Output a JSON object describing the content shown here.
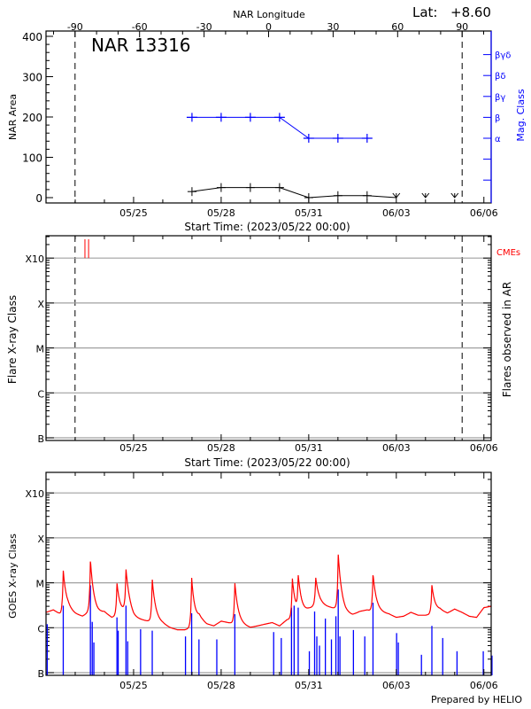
{
  "colors": {
    "axis": "#000000",
    "mag_class": "#0000ff",
    "cme": "#ff0000",
    "goes_long": "#ff0000",
    "goes_short": "#0000ff",
    "grid": "#a0a0a0"
  },
  "header": {
    "region": "NAR 13316",
    "lat_label": "Lat:",
    "lat_value": "+8.60"
  },
  "footer": {
    "credit": "Prepared by HELIO"
  },
  "chart_data": [
    {
      "type": "line",
      "panel": "nar-area",
      "top_axis": {
        "label": "NAR Longitude",
        "ticks": [
          "-90",
          "-60",
          "-30",
          "0",
          "30",
          "60",
          "90"
        ],
        "range": [
          -103.5,
          103.5
        ]
      },
      "xlabel": "Start Time: (2023/05/22 00:00)",
      "x_ticks": [
        "05/25",
        "05/28",
        "05/31",
        "06/03",
        "06/06"
      ],
      "xlim": [
        "05/22 00:00",
        "06/06 06:00"
      ],
      "ylabel": "NAR Area",
      "y_ticks": [
        "0",
        "100",
        "200",
        "300",
        "400"
      ],
      "ylim": [
        0,
        413
      ],
      "y2label": "Mag. Class",
      "y2_ticks": [
        "α",
        "β",
        "βγ",
        "βδ",
        "βγδ"
      ],
      "limb_longitudes": [
        -90,
        90
      ],
      "series": [
        {
          "key": "area",
          "x": [
            "05/27",
            "05/28",
            "05/29",
            "05/30",
            "05/31",
            "06/01",
            "06/02",
            "06/03",
            "06/04",
            "06/05"
          ],
          "values": [
            15,
            25,
            25,
            25,
            0,
            5,
            5,
            0,
            0,
            0
          ]
        },
        {
          "key": "mag_class",
          "x": [
            "05/27",
            "05/28",
            "05/29",
            "05/30",
            "05/31",
            "06/01",
            "06/02"
          ],
          "values": [
            "β",
            "β",
            "β",
            "β",
            "α",
            "α",
            "α"
          ]
        }
      ]
    },
    {
      "type": "scatter",
      "panel": "flares",
      "xlabel": "Start Time: (2023/05/22 00:00)",
      "x_ticks": [
        "05/25",
        "05/28",
        "05/31",
        "06/03",
        "06/06"
      ],
      "ylabel": "Flare X-ray Class",
      "y2label": "Flares observed in AR",
      "y_ticks": [
        "B",
        "C",
        "M",
        "X",
        "X10"
      ],
      "grid": true,
      "cme_label": "CMEs",
      "cmes": [
        "05/23 08:00",
        "05/23 11:00"
      ],
      "flares": []
    },
    {
      "type": "line",
      "panel": "goes",
      "ylabel": "GOES X-ray Class",
      "x_ticks": [
        "05/25",
        "05/28",
        "05/31",
        "06/03",
        "06/06"
      ],
      "y_ticks": [
        "B",
        "C",
        "M",
        "X",
        "X10"
      ],
      "grid": true,
      "long_channel_baseline": [
        [
          "05/22 00:00",
          2.2e-06
        ],
        [
          "05/22 06:00",
          2.5e-06
        ],
        [
          "05/22 12:00",
          2e-06
        ],
        [
          "05/22 18:00",
          2.4e-06
        ],
        [
          "05/23 00:00",
          2e-06
        ],
        [
          "05/23 06:00",
          1.8e-06
        ],
        [
          "05/23 12:00",
          2.3e-06
        ],
        [
          "05/23 18:00",
          2e-06
        ],
        [
          "05/24 00:00",
          2.2e-06
        ],
        [
          "05/24 06:00",
          1.7e-06
        ],
        [
          "05/24 12:00",
          1.8e-06
        ],
        [
          "05/24 18:00",
          2.4e-06
        ],
        [
          "05/25 00:00",
          1.6e-06
        ],
        [
          "05/25 06:00",
          1.5e-06
        ],
        [
          "05/25 12:00",
          1.4e-06
        ],
        [
          "05/25 18:00",
          1.3e-06
        ],
        [
          "05/26 00:00",
          1.2e-06
        ],
        [
          "05/26 06:00",
          1e-06
        ],
        [
          "05/26 12:00",
          9e-07
        ],
        [
          "05/26 18:00",
          9e-07
        ],
        [
          "05/27 00:00",
          1e-06
        ],
        [
          "05/27 06:00",
          1.6e-06
        ],
        [
          "05/27 12:00",
          1.2e-06
        ],
        [
          "05/27 18:00",
          1.1e-06
        ],
        [
          "05/28 00:00",
          1.4e-06
        ],
        [
          "05/28 06:00",
          1.3e-06
        ],
        [
          "05/28 12:00",
          1.2e-06
        ],
        [
          "05/28 18:00",
          1.1e-06
        ],
        [
          "05/29 00:00",
          1e-06
        ],
        [
          "05/29 06:00",
          1.1e-06
        ],
        [
          "05/29 12:00",
          1.2e-06
        ],
        [
          "05/29 18:00",
          1.3e-06
        ],
        [
          "05/30 00:00",
          1.1e-06
        ],
        [
          "05/30 06:00",
          1.5e-06
        ],
        [
          "05/30 12:00",
          1.6e-06
        ],
        [
          "05/30 18:00",
          1.8e-06
        ],
        [
          "05/31 00:00",
          2.5e-06
        ],
        [
          "05/31 06:00",
          3.2e-06
        ],
        [
          "05/31 12:00",
          3e-06
        ],
        [
          "05/31 18:00",
          2.8e-06
        ],
        [
          "06/01 00:00",
          2.6e-06
        ],
        [
          "06/01 06:00",
          2e-06
        ],
        [
          "06/01 12:00",
          1.9e-06
        ],
        [
          "06/01 18:00",
          2.3e-06
        ],
        [
          "06/02 00:00",
          2.5e-06
        ],
        [
          "06/02 06:00",
          2.2e-06
        ],
        [
          "06/02 12:00",
          2.1e-06
        ],
        [
          "06/02 18:00",
          2e-06
        ],
        [
          "06/03 00:00",
          1.7e-06
        ],
        [
          "06/03 06:00",
          1.8e-06
        ],
        [
          "06/03 12:00",
          2.2e-06
        ],
        [
          "06/03 18:00",
          1.9e-06
        ],
        [
          "06/04 00:00",
          1.9e-06
        ],
        [
          "06/04 06:00",
          2e-06
        ],
        [
          "06/04 12:00",
          2.4e-06
        ],
        [
          "06/04 18:00",
          2.1e-06
        ],
        [
          "06/05 00:00",
          2.6e-06
        ],
        [
          "06/05 06:00",
          2.2e-06
        ],
        [
          "06/05 12:00",
          1.8e-06
        ],
        [
          "06/05 18:00",
          1.7e-06
        ],
        [
          "06/06 00:00",
          2.8e-06
        ],
        [
          "06/06 06:00",
          3e-06
        ]
      ],
      "long_channel_peaks": [
        [
          "05/22 14:10",
          1.9e-05
        ],
        [
          "05/23 12:30",
          3.2e-05
        ],
        [
          "05/24 10:20",
          1e-05
        ],
        [
          "05/24 17:45",
          2e-05
        ],
        [
          "05/25 15:20",
          1.2e-05
        ],
        [
          "05/26 23:45",
          1.3e-05
        ],
        [
          "05/28 11:15",
          1e-05
        ],
        [
          "05/30 10:30",
          1.3e-05
        ],
        [
          "05/30 15:20",
          1.5e-05
        ],
        [
          "05/31 05:45",
          1.3e-05
        ],
        [
          "06/01 00:15",
          4.4e-05
        ],
        [
          "06/02 04:50",
          1.6e-05
        ],
        [
          "06/04 05:15",
          9e-06
        ]
      ],
      "short_channel_peaks": [
        [
          "05/22 01:00",
          1.2e-06
        ],
        [
          "05/22 14:10",
          3.1e-06
        ],
        [
          "05/23 12:30",
          8.8e-06
        ],
        [
          "05/23 14:00",
          1.35e-06
        ],
        [
          "05/23 15:20",
          4.7e-07
        ],
        [
          "05/24 10:20",
          1.7e-06
        ],
        [
          "05/24 11:20",
          8.6e-07
        ],
        [
          "05/24 17:45",
          3.1e-06
        ],
        [
          "05/24 19:10",
          5e-07
        ],
        [
          "05/25 05:45",
          9.3e-07
        ],
        [
          "05/25 15:20",
          8.6e-07
        ],
        [
          "05/26 18:40",
          6.4e-07
        ],
        [
          "05/26 23:45",
          2.1e-06
        ],
        [
          "05/27 05:45",
          5.5e-07
        ],
        [
          "05/27 20:25",
          5.5e-07
        ],
        [
          "05/28 11:15",
          2e-06
        ],
        [
          "05/29 19:10",
          8e-07
        ],
        [
          "05/30 01:25",
          5.9e-07
        ],
        [
          "05/30 09:50",
          2.8e-06
        ],
        [
          "05/30 12:00",
          3.1e-06
        ],
        [
          "05/30 15:20",
          2.8e-06
        ],
        [
          "05/31 00:30",
          3e-07
        ],
        [
          "05/31 04:50",
          2.3e-06
        ],
        [
          "05/31 06:40",
          6.4e-07
        ],
        [
          "05/31 08:50",
          4e-07
        ],
        [
          "05/31 13:40",
          1.6e-06
        ],
        [
          "05/31 18:40",
          5.5e-07
        ],
        [
          "05/31 22:20",
          1.8e-06
        ],
        [
          "06/01 00:15",
          7.1e-06
        ],
        [
          "06/01 01:40",
          6.4e-07
        ],
        [
          "06/01 12:45",
          8.9e-07
        ],
        [
          "06/01 22:05",
          6.4e-07
        ],
        [
          "06/02 04:50",
          3.6e-06
        ],
        [
          "06/03 00:15",
          7.6e-07
        ],
        [
          "06/03 01:40",
          4.7e-07
        ],
        [
          "06/03 20:40",
          2.5e-07
        ],
        [
          "06/04 05:15",
          1.1e-06
        ],
        [
          "06/04 14:10",
          5.9e-07
        ],
        [
          "06/05 01:55",
          3e-07
        ],
        [
          "06/05 23:30",
          3e-07
        ],
        [
          "06/06 06:40",
          2.4e-07
        ]
      ]
    }
  ]
}
